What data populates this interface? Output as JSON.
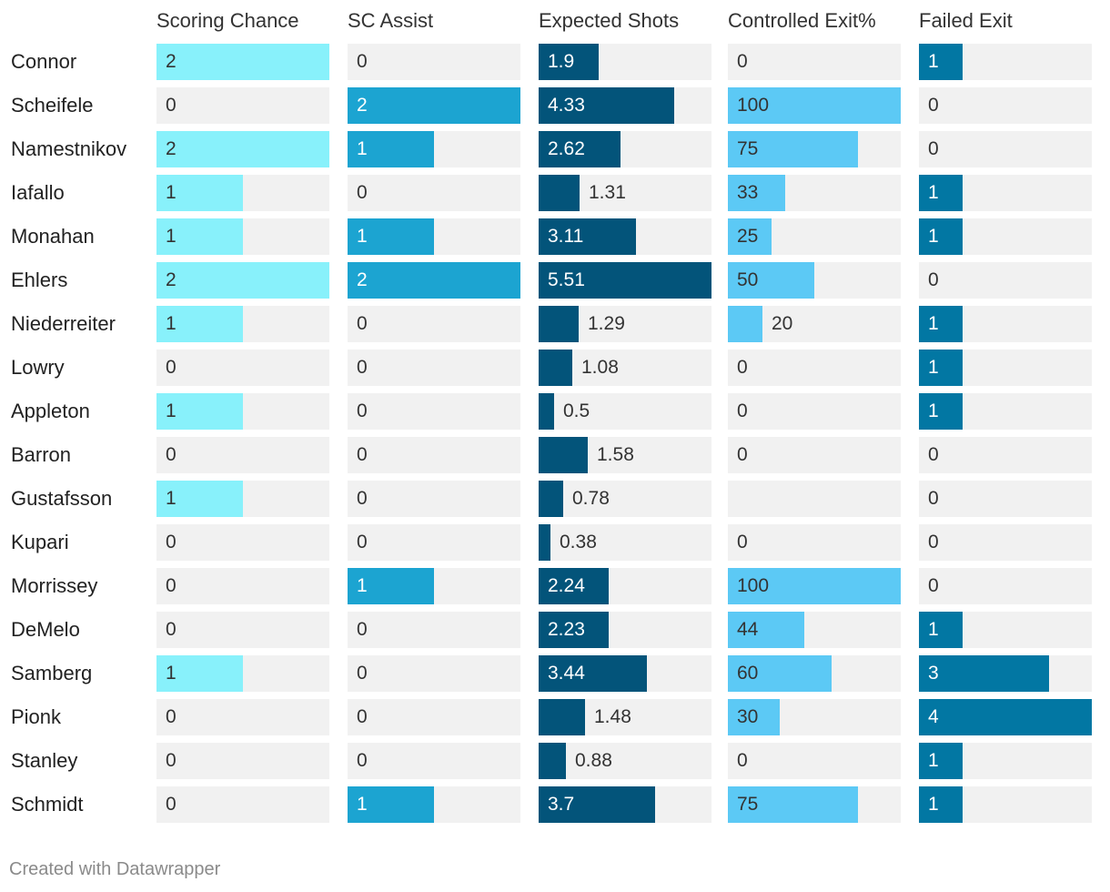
{
  "chart_data": {
    "type": "table",
    "columns": [
      {
        "key": "sc",
        "label": "Scoring Chance",
        "max": 2,
        "color": "#88f1fb",
        "text_dark": true
      },
      {
        "key": "sca",
        "label": "SC Assist",
        "max": 2,
        "color": "#1ca4d1",
        "text_dark": false
      },
      {
        "key": "xs",
        "label": "Expected Shots",
        "max": 5.51,
        "color": "#03547a",
        "text_dark": false
      },
      {
        "key": "ce",
        "label": "Controlled Exit%",
        "max": 100,
        "color": "#5cc9f5",
        "text_dark": true
      },
      {
        "key": "fe",
        "label": "Failed Exit",
        "max": 4,
        "color": "#0277a3",
        "text_dark": false
      }
    ],
    "rows": [
      {
        "name": "Connor",
        "sc": "2",
        "sca": "0",
        "xs": "1.9",
        "ce": "0",
        "fe": "1"
      },
      {
        "name": "Scheifele",
        "sc": "0",
        "sca": "2",
        "xs": "4.33",
        "ce": "100",
        "fe": "0"
      },
      {
        "name": "Namestnikov",
        "sc": "2",
        "sca": "1",
        "xs": "2.62",
        "ce": "75",
        "fe": "0"
      },
      {
        "name": "Iafallo",
        "sc": "1",
        "sca": "0",
        "xs": "1.31",
        "ce": "33",
        "fe": "1"
      },
      {
        "name": "Monahan",
        "sc": "1",
        "sca": "1",
        "xs": "3.11",
        "ce": "25",
        "fe": "1"
      },
      {
        "name": "Ehlers",
        "sc": "2",
        "sca": "2",
        "xs": "5.51",
        "ce": "50",
        "fe": "0"
      },
      {
        "name": "Niederreiter",
        "sc": "1",
        "sca": "0",
        "xs": "1.29",
        "ce": "20",
        "fe": "1"
      },
      {
        "name": "Lowry",
        "sc": "0",
        "sca": "0",
        "xs": "1.08",
        "ce": "0",
        "fe": "1"
      },
      {
        "name": "Appleton",
        "sc": "1",
        "sca": "0",
        "xs": "0.5",
        "ce": "0",
        "fe": "1"
      },
      {
        "name": "Barron",
        "sc": "0",
        "sca": "0",
        "xs": "1.58",
        "ce": "0",
        "fe": "0"
      },
      {
        "name": "Gustafsson",
        "sc": "1",
        "sca": "0",
        "xs": "0.78",
        "ce": "",
        "fe": "0"
      },
      {
        "name": "Kupari",
        "sc": "0",
        "sca": "0",
        "xs": "0.38",
        "ce": "0",
        "fe": "0"
      },
      {
        "name": "Morrissey",
        "sc": "0",
        "sca": "1",
        "xs": "2.24",
        "ce": "100",
        "fe": "0"
      },
      {
        "name": "DeMelo",
        "sc": "0",
        "sca": "0",
        "xs": "2.23",
        "ce": "44",
        "fe": "1"
      },
      {
        "name": "Samberg",
        "sc": "1",
        "sca": "0",
        "xs": "3.44",
        "ce": "60",
        "fe": "3"
      },
      {
        "name": "Pionk",
        "sc": "0",
        "sca": "0",
        "xs": "1.48",
        "ce": "30",
        "fe": "4"
      },
      {
        "name": "Stanley",
        "sc": "0",
        "sca": "0",
        "xs": "0.88",
        "ce": "0",
        "fe": "1"
      },
      {
        "name": "Schmidt",
        "sc": "0",
        "sca": "1",
        "xs": "3.7",
        "ce": "75",
        "fe": "1"
      }
    ]
  },
  "footer": {
    "credit": "Created with Datawrapper"
  }
}
